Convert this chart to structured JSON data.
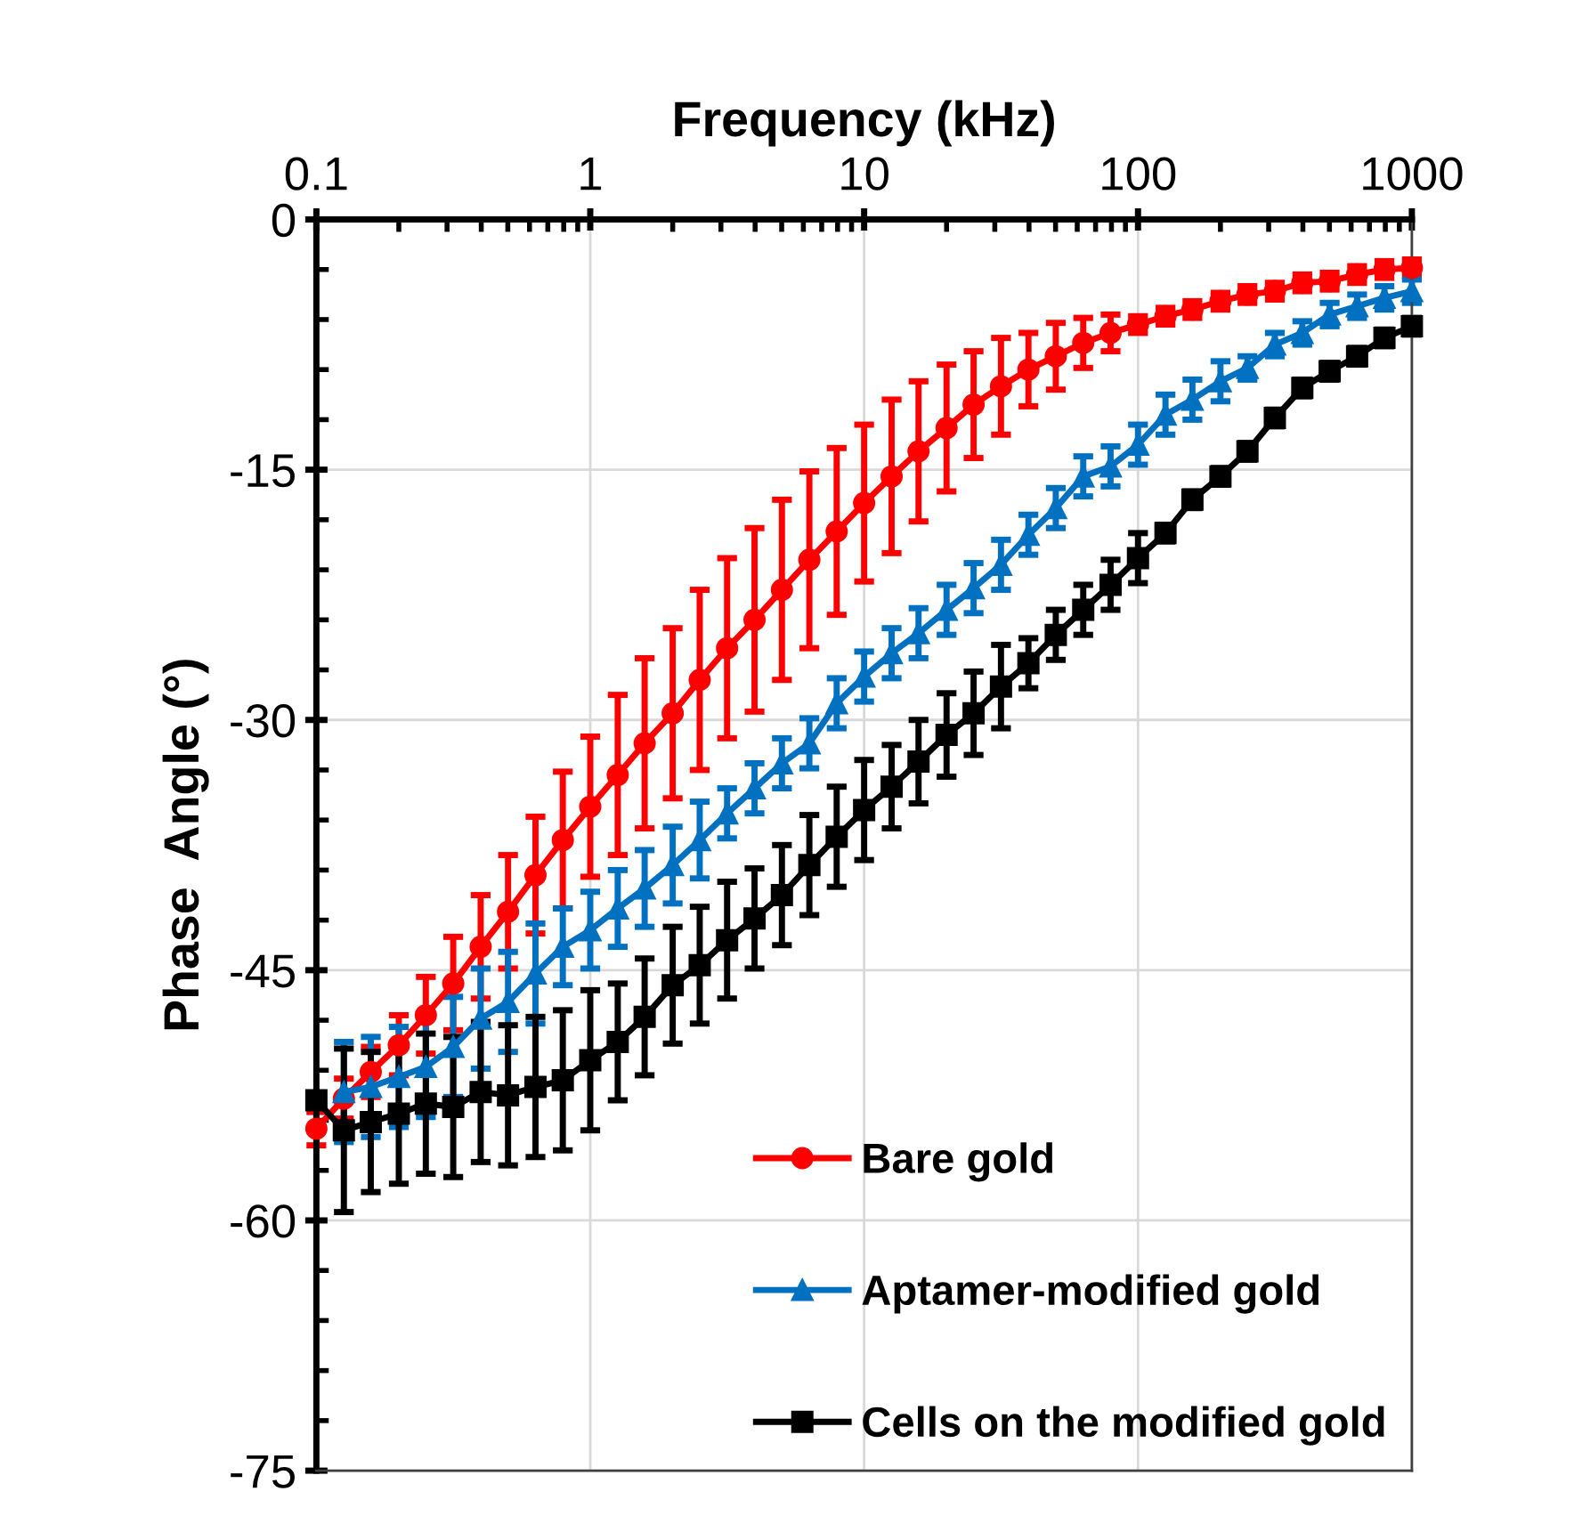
{
  "chart_data": {
    "type": "line",
    "xlabel": "Frequency (kHz)",
    "ylabel": "Phase  Angle (°)",
    "log": "x",
    "grid": true,
    "legend": "bottom right",
    "line_style": "solid",
    "x": [
      0.1,
      0.126,
      0.158,
      0.2,
      0.251,
      0.316,
      0.398,
      0.501,
      0.631,
      0.794,
      1,
      1.26,
      1.58,
      2,
      2.51,
      3.16,
      3.98,
      5.01,
      6.31,
      7.94,
      10,
      12.6,
      15.8,
      20,
      25.1,
      31.6,
      39.8,
      50.1,
      63.1,
      79.4,
      100,
      126,
      158,
      200,
      251,
      316,
      398,
      501,
      631,
      794,
      1000
    ],
    "xlim": [
      0.1,
      1000
    ],
    "xticks": [
      0.1,
      1,
      10,
      100,
      1000
    ],
    "ylim": [
      -75,
      0
    ],
    "yticks": [
      -75,
      -60,
      -45,
      -30,
      -15,
      0
    ],
    "series": [
      {
        "name": "Bare gold",
        "color": "#ff0000",
        "marker": "circle",
        "values": [
          -54.5,
          -52.7,
          -51.1,
          -49.5,
          -47.7,
          -45.8,
          -43.6,
          -41.5,
          -39.3,
          -37.2,
          -35.2,
          -33.3,
          -31.4,
          -29.6,
          -27.6,
          -25.7,
          -24.0,
          -22.2,
          -20.4,
          -18.7,
          -17.0,
          -15.4,
          -13.9,
          -12.5,
          -11.1,
          -10.0,
          -9.0,
          -8.2,
          -7.4,
          -6.8,
          -6.3,
          -5.8,
          -5.4,
          -4.9,
          -4.5,
          -4.3,
          -3.8,
          -3.7,
          -3.3,
          -3.0,
          -2.9
        ],
        "errors": [
          1.0,
          1.2,
          1.5,
          1.8,
          2.3,
          2.8,
          3.1,
          3.4,
          3.5,
          4.1,
          4.2,
          4.8,
          5.1,
          5.1,
          5.4,
          5.4,
          5.5,
          5.4,
          5.3,
          5.0,
          4.7,
          4.6,
          4.2,
          3.8,
          3.2,
          2.9,
          2.2,
          2.0,
          1.5,
          1.1,
          0.5,
          0.5,
          0.5,
          0.5,
          0.5,
          0.5,
          0.5,
          0.5,
          0.5,
          0.5,
          0.5
        ]
      },
      {
        "name": "Aptamer-modified gold",
        "color": "#0070c0",
        "marker": "triangle",
        "values": [
          null,
          -52.3,
          -52.0,
          -51.4,
          -50.8,
          -49.6,
          -47.9,
          -46.9,
          -45.2,
          -43.6,
          -42.6,
          -41.3,
          -40.1,
          -38.7,
          -37.2,
          -35.6,
          -34.1,
          -32.6,
          -31.4,
          -29.0,
          -27.4,
          -26.0,
          -24.8,
          -23.4,
          -22.1,
          -20.7,
          -18.9,
          -17.3,
          -15.4,
          -14.8,
          -13.5,
          -11.7,
          -10.8,
          -9.7,
          -8.9,
          -7.5,
          -6.8,
          -5.7,
          -5.2,
          -4.7,
          -4.3
        ],
        "errors": [
          null,
          3.0,
          3.0,
          3.0,
          3.0,
          3.0,
          3.0,
          3.0,
          3.0,
          2.3,
          2.3,
          2.3,
          2.3,
          2.3,
          2.3,
          1.5,
          1.5,
          1.5,
          1.5,
          1.5,
          1.5,
          1.5,
          1.5,
          1.5,
          1.5,
          1.5,
          1.2,
          1.2,
          1.2,
          1.2,
          1.2,
          1.2,
          1.2,
          1.2,
          0.7,
          0.7,
          0.7,
          0.7,
          0.7,
          0.7,
          0.7
        ]
      },
      {
        "name": "Cells on the modified gold",
        "color": "#000000",
        "marker": "square",
        "values": [
          -52.8,
          -54.6,
          -54.1,
          -53.6,
          -53.0,
          -53.2,
          -52.3,
          -52.5,
          -52.0,
          -51.6,
          -50.4,
          -49.3,
          -47.8,
          -45.9,
          -44.7,
          -43.2,
          -41.9,
          -40.5,
          -38.7,
          -37.0,
          -35.4,
          -34.0,
          -32.5,
          -30.9,
          -29.6,
          -28.0,
          -26.6,
          -24.9,
          -23.4,
          -21.9,
          -20.3,
          -18.8,
          -16.8,
          -15.4,
          -13.9,
          -11.9,
          -10.1,
          -9.1,
          -8.2,
          -7.1,
          -6.4
        ],
        "errors": [
          null,
          4.9,
          4.2,
          4.2,
          4.2,
          4.2,
          4.2,
          4.2,
          4.2,
          4.2,
          4.2,
          3.5,
          3.5,
          3.5,
          3.5,
          3.5,
          3.0,
          3.0,
          3.0,
          3.0,
          3.0,
          2.5,
          2.5,
          2.5,
          2.5,
          2.5,
          1.5,
          1.5,
          1.5,
          1.5,
          1.5,
          0.5,
          0.5,
          0.5,
          0.5,
          0.5,
          0.5,
          0.5,
          0.5,
          0.5,
          0.5
        ]
      }
    ]
  }
}
